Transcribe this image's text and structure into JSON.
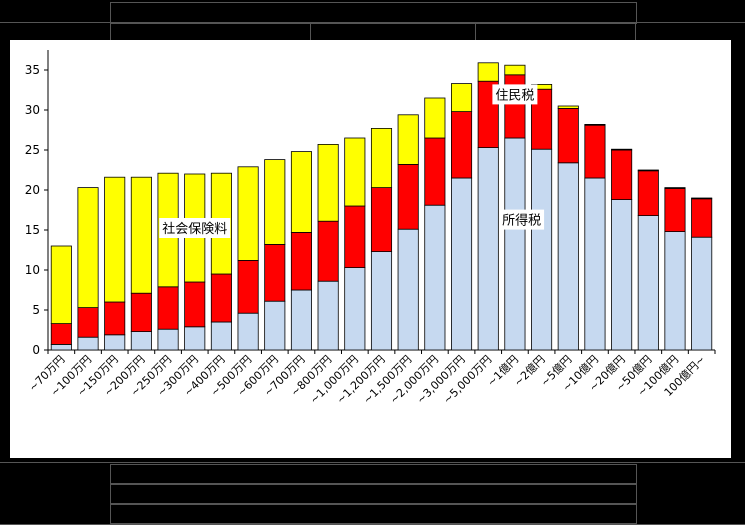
{
  "chart_data": {
    "type": "bar",
    "stacked": true,
    "title": "",
    "xlabel": "",
    "ylabel": "",
    "ylim": [
      0,
      37
    ],
    "yticks": [
      0,
      5,
      10,
      15,
      20,
      25,
      30,
      35
    ],
    "grid": false,
    "categories": [
      "~70万円",
      "~100万円",
      "~150万円",
      "~200万円",
      "~250万円",
      "~300万円",
      "~400万円",
      "~500万円",
      "~600万円",
      "~700万円",
      "~800万円",
      "~1,000万円",
      "~1,200万円",
      "~1,500万円",
      "~2,000万円",
      "~3,000万円",
      "~5,000万円",
      "~1億円",
      "~2億円",
      "~5億円",
      "~10億円",
      "~20億円",
      "~50億円",
      "~100億円",
      "100億円~"
    ],
    "series": [
      {
        "name": "所得税",
        "color": "#c6d9f0",
        "values": [
          0.7,
          1.6,
          1.9,
          2.3,
          2.6,
          2.9,
          3.5,
          4.6,
          6.1,
          7.5,
          8.6,
          10.3,
          12.3,
          15.1,
          18.1,
          21.5,
          25.3,
          26.5,
          25.1,
          23.4,
          21.5,
          18.8,
          16.8,
          14.8,
          14.1
        ]
      },
      {
        "name": "住民税",
        "color": "#ff0000",
        "values": [
          2.6,
          3.7,
          4.1,
          4.8,
          5.3,
          5.6,
          6.0,
          6.6,
          7.1,
          7.2,
          7.5,
          7.7,
          8.0,
          8.1,
          8.4,
          8.3,
          8.3,
          7.9,
          7.5,
          6.8,
          6.6,
          6.2,
          5.6,
          5.4,
          4.8
        ]
      },
      {
        "name": "社会保険料",
        "color": "#ffff00",
        "values": [
          9.7,
          15.0,
          15.6,
          14.5,
          14.2,
          13.5,
          12.6,
          11.7,
          10.6,
          10.1,
          9.6,
          8.5,
          7.4,
          6.2,
          5.0,
          3.5,
          2.3,
          1.2,
          0.6,
          0.3,
          0.1,
          0.1,
          0.1,
          0.1,
          0.1
        ]
      }
    ],
    "annotations": [
      {
        "text": "社会保険料",
        "series": "社会保険料"
      },
      {
        "text": "住民税",
        "series": "住民税"
      },
      {
        "text": "所得税",
        "series": "所得税"
      }
    ]
  }
}
